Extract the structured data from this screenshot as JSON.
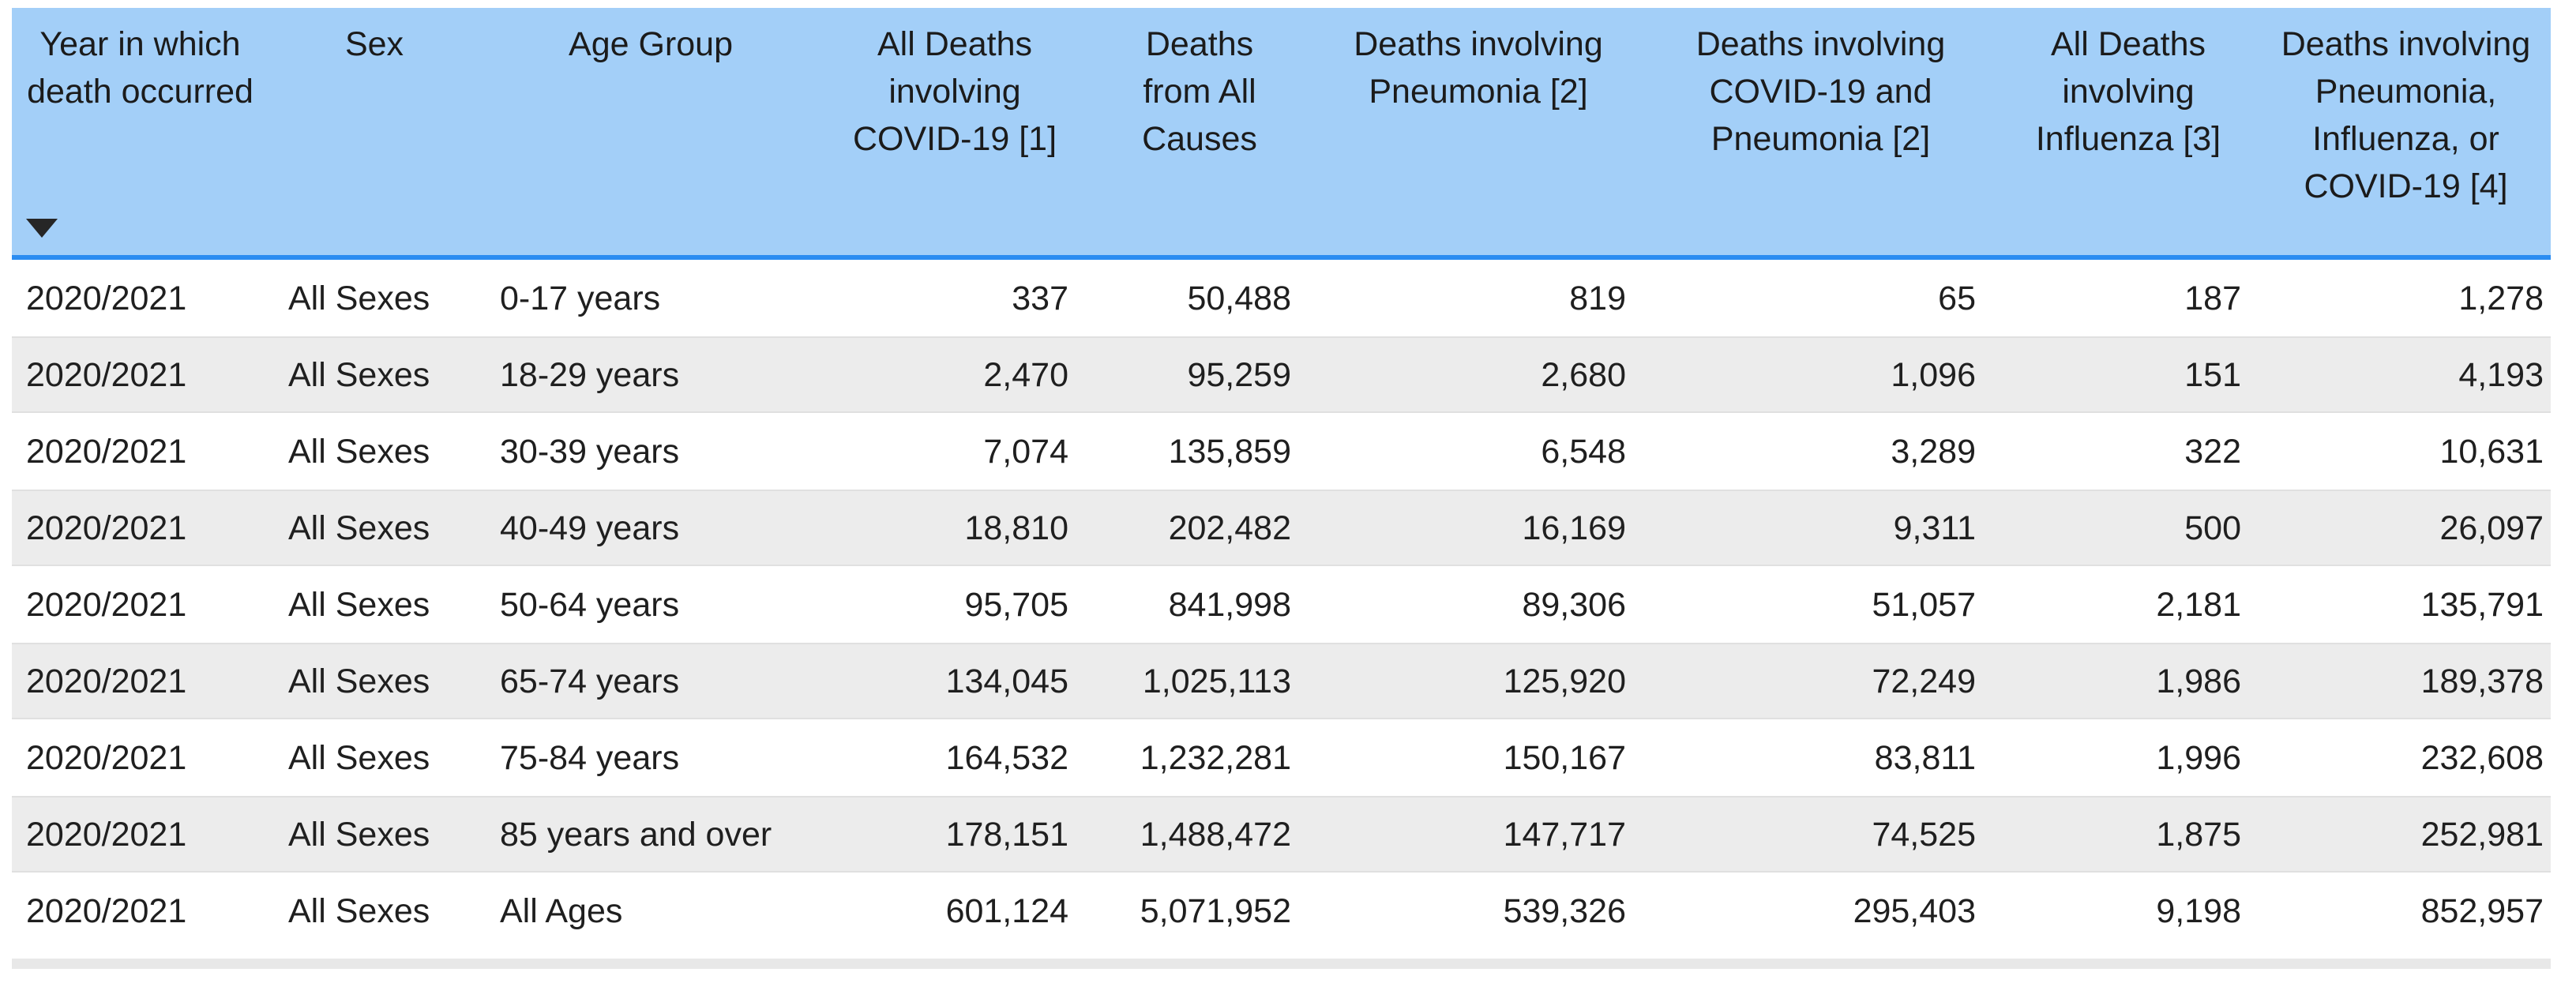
{
  "colors": {
    "header_background": "#A3CFF8",
    "header_rule": "#2B8CF1",
    "alt_row": "#ECECEC",
    "text": "#1F1F1F",
    "bottom_strip": "#E8E8E8"
  },
  "icons": {
    "sort": "sort-descending-icon"
  },
  "chart_data": {
    "type": "table",
    "title": "",
    "columns": [
      {
        "label": "Year in which death occurred",
        "sorted": "descending",
        "align": "left"
      },
      {
        "label": "Sex",
        "align": "left"
      },
      {
        "label": "Age Group",
        "align": "left"
      },
      {
        "label": "All Deaths involving COVID-19 [1]",
        "align": "right"
      },
      {
        "label": "Deaths from All Causes",
        "align": "right"
      },
      {
        "label": "Deaths involving Pneumonia [2]",
        "align": "right"
      },
      {
        "label": "Deaths involving COVID-19 and Pneumonia [2]",
        "align": "right"
      },
      {
        "label": "All Deaths involving Influenza [3]",
        "align": "right"
      },
      {
        "label": "Deaths involving Pneumonia, Influenza, or COVID-19 [4]",
        "align": "right"
      }
    ],
    "rows": [
      [
        "2020/2021",
        "All Sexes",
        "0-17 years",
        "337",
        "50,488",
        "819",
        "65",
        "187",
        "1,278"
      ],
      [
        "2020/2021",
        "All Sexes",
        "18-29 years",
        "2,470",
        "95,259",
        "2,680",
        "1,096",
        "151",
        "4,193"
      ],
      [
        "2020/2021",
        "All Sexes",
        "30-39 years",
        "7,074",
        "135,859",
        "6,548",
        "3,289",
        "322",
        "10,631"
      ],
      [
        "2020/2021",
        "All Sexes",
        "40-49 years",
        "18,810",
        "202,482",
        "16,169",
        "9,311",
        "500",
        "26,097"
      ],
      [
        "2020/2021",
        "All Sexes",
        "50-64 years",
        "95,705",
        "841,998",
        "89,306",
        "51,057",
        "2,181",
        "135,791"
      ],
      [
        "2020/2021",
        "All Sexes",
        "65-74 years",
        "134,045",
        "1,025,113",
        "125,920",
        "72,249",
        "1,986",
        "189,378"
      ],
      [
        "2020/2021",
        "All Sexes",
        "75-84 years",
        "164,532",
        "1,232,281",
        "150,167",
        "83,811",
        "1,996",
        "232,608"
      ],
      [
        "2020/2021",
        "All Sexes",
        "85 years and over",
        "178,151",
        "1,488,472",
        "147,717",
        "74,525",
        "1,875",
        "252,981"
      ],
      [
        "2020/2021",
        "All Sexes",
        "All Ages",
        "601,124",
        "5,071,952",
        "539,326",
        "295,403",
        "9,198",
        "852,957"
      ]
    ]
  }
}
